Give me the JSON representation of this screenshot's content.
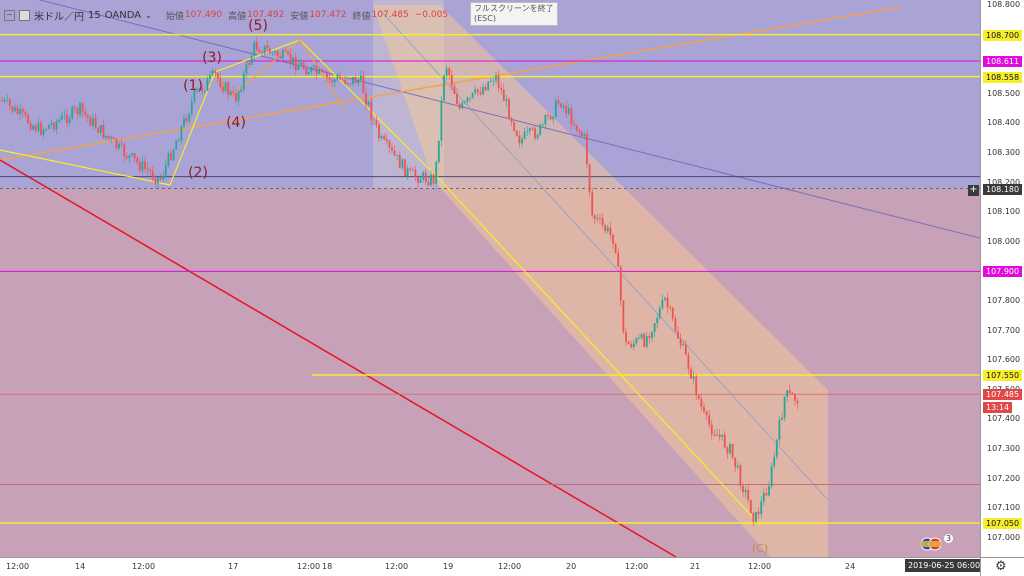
{
  "legend": {
    "symbol": "米ドル／円",
    "interval": "15",
    "source": "OANDA",
    "open_label": "始値",
    "open_value": "107.490",
    "high_label": "高値",
    "high_value": "107.492",
    "low_label": "安値",
    "low_value": "107.472",
    "close_label": "終値",
    "close_value": "107.485",
    "change_value": "−0.005"
  },
  "tooltip": {
    "line1": "フルスクリーンを終了",
    "line2": "(ESC)"
  },
  "price_axis": {
    "ticks": [
      "108.800",
      "108.700",
      "108.600",
      "108.500",
      "108.400",
      "108.300",
      "108.200",
      "108.100",
      "108.000",
      "107.900",
      "107.800",
      "107.700",
      "107.600",
      "107.500",
      "107.400",
      "107.300",
      "107.200",
      "107.100",
      "107.000"
    ],
    "tags": [
      {
        "value": "108.700",
        "kind": "yellow"
      },
      {
        "value": "108.611",
        "kind": "magenta"
      },
      {
        "value": "108.558",
        "kind": "yellow"
      },
      {
        "value": "108.180",
        "kind": "dark"
      },
      {
        "value": "107.900",
        "kind": "magenta"
      },
      {
        "value": "107.550",
        "kind": "yellow"
      },
      {
        "value": "107.485",
        "kind": "red"
      },
      {
        "value": "13:14",
        "kind": "red"
      },
      {
        "value": "107.050",
        "kind": "yellow"
      }
    ]
  },
  "time_axis": {
    "labels": [
      "12:00",
      "14",
      "12:00",
      "17",
      "12:00",
      "18",
      "12:00",
      "19",
      "12:00",
      "20",
      "12:00",
      "21",
      "12:00",
      "24"
    ],
    "current": "2019-06-25",
    "current_time": "06:00"
  },
  "wave_labels": [
    "(1)",
    "(2)",
    "(3)",
    "(4)",
    "(5)",
    "(C)"
  ],
  "flag_badge": "3",
  "colors": {
    "up_candle": "#26a69a",
    "down_candle": "#ef5350",
    "support_line": "#f6ee2b",
    "magenta_line": "#e20adf",
    "trend_red": "#e8141e",
    "channel_fill": "#f2c79a"
  }
}
